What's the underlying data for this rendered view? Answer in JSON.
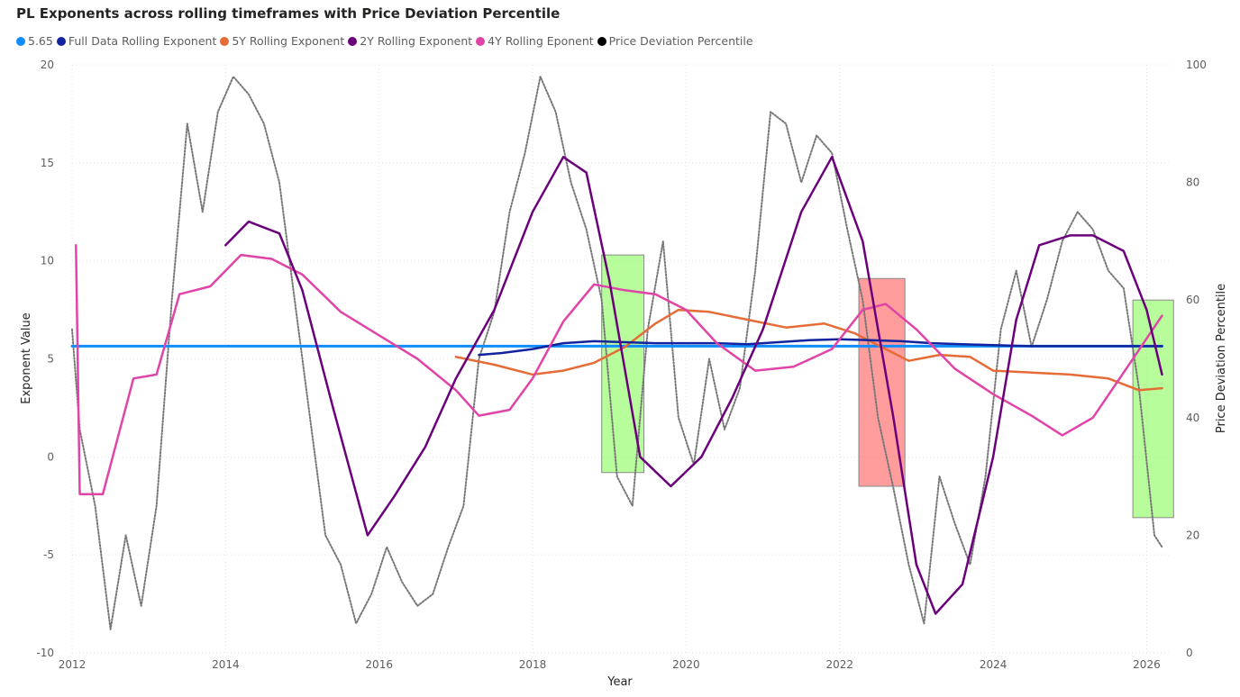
{
  "title": "PL Exponents across rolling timeframes with Price Deviation Percentile",
  "legend": [
    {
      "label": "5.65",
      "color": "#118DFF"
    },
    {
      "label": "Full Data Rolling Exponent",
      "color": "#12239E"
    },
    {
      "label": "5Y Rolling Exponent",
      "color": "#E66C37"
    },
    {
      "label": "2Y Rolling Exponent",
      "color": "#6B007B"
    },
    {
      "label": "4Y Rolling Eponent",
      "color": "#E044A7"
    },
    {
      "label": "Price Deviation Percentile",
      "color": "#000000"
    }
  ],
  "chart_data": {
    "type": "line",
    "xlabel": "Year",
    "ylabel": "Exponent Value",
    "y2label": "Price Deviation Percentile",
    "xlim": [
      2012,
      2026.3
    ],
    "ylim": [
      -10,
      20
    ],
    "y2lim": [
      0,
      100
    ],
    "xticks": [
      "2012",
      "2014",
      "2016",
      "2018",
      "2020",
      "2022",
      "2024",
      "2026"
    ],
    "yticks": [
      "-10",
      "-5",
      "0",
      "5",
      "10",
      "15",
      "20"
    ],
    "y2ticks": [
      "0",
      "20",
      "40",
      "60",
      "80",
      "100"
    ],
    "grid": true,
    "legend_position": "top-left",
    "series": [
      {
        "name": "5.65",
        "color": "#118DFF",
        "x": [
          2012.0,
          2026.2
        ],
        "y": [
          5.65,
          5.65
        ]
      },
      {
        "name": "Full Data Rolling Exponent",
        "color": "#12239E",
        "x": [
          2017.3,
          2017.6,
          2018.0,
          2018.4,
          2018.8,
          2019.2,
          2019.6,
          2020.0,
          2020.4,
          2020.8,
          2021.2,
          2021.6,
          2022.0,
          2022.4,
          2022.8,
          2023.2,
          2023.6,
          2024.0,
          2024.5,
          2025.0,
          2025.5,
          2026.2
        ],
        "y": [
          5.2,
          5.3,
          5.5,
          5.8,
          5.9,
          5.85,
          5.8,
          5.8,
          5.8,
          5.75,
          5.85,
          5.95,
          6.0,
          5.95,
          5.9,
          5.8,
          5.75,
          5.7,
          5.65,
          5.65,
          5.65,
          5.65
        ]
      },
      {
        "name": "5Y Rolling Exponent",
        "color": "#E66C37",
        "x": [
          2017.0,
          2017.5,
          2018.0,
          2018.4,
          2018.8,
          2019.2,
          2019.6,
          2019.9,
          2020.3,
          2020.8,
          2021.3,
          2021.8,
          2022.2,
          2022.6,
          2022.9,
          2023.3,
          2023.7,
          2024.0,
          2024.5,
          2025.0,
          2025.5,
          2025.9,
          2026.2
        ],
        "y": [
          5.1,
          4.7,
          4.2,
          4.4,
          4.8,
          5.6,
          6.8,
          7.5,
          7.4,
          7.0,
          6.6,
          6.8,
          6.3,
          5.5,
          4.9,
          5.2,
          5.1,
          4.4,
          4.3,
          4.2,
          4.0,
          3.4,
          3.5
        ]
      },
      {
        "name": "2Y Rolling Exponent",
        "color": "#6B007B",
        "x": [
          2014.0,
          2014.3,
          2014.7,
          2015.0,
          2015.4,
          2015.85,
          2016.2,
          2016.6,
          2017.0,
          2017.5,
          2018.0,
          2018.4,
          2018.7,
          2019.0,
          2019.4,
          2019.8,
          2020.2,
          2020.6,
          2021.0,
          2021.5,
          2021.9,
          2022.3,
          2022.7,
          2023.0,
          2023.25,
          2023.6,
          2024.0,
          2024.3,
          2024.6,
          2025.0,
          2025.3,
          2025.7,
          2026.0,
          2026.2
        ],
        "y": [
          10.8,
          12.0,
          11.4,
          8.5,
          2.5,
          -4.0,
          -2.0,
          0.5,
          4.0,
          7.5,
          12.5,
          15.3,
          14.5,
          9.0,
          0.0,
          -1.5,
          0.0,
          3.0,
          6.5,
          12.5,
          15.3,
          11.0,
          2.0,
          -5.5,
          -8.0,
          -6.5,
          0.0,
          7.0,
          10.8,
          11.3,
          11.3,
          10.5,
          7.5,
          4.2
        ]
      },
      {
        "name": "4Y Rolling Eponent",
        "color": "#E044A7",
        "x": [
          2012.05,
          2012.1,
          2012.4,
          2012.8,
          2013.1,
          2013.4,
          2013.8,
          2014.2,
          2014.6,
          2015.0,
          2015.5,
          2016.0,
          2016.5,
          2017.0,
          2017.3,
          2017.7,
          2018.0,
          2018.4,
          2018.8,
          2019.2,
          2019.6,
          2020.0,
          2020.4,
          2020.9,
          2021.4,
          2021.9,
          2022.3,
          2022.6,
          2023.0,
          2023.5,
          2024.0,
          2024.5,
          2024.9,
          2025.3,
          2025.7,
          2026.2
        ],
        "y": [
          10.8,
          -1.9,
          -1.9,
          4.0,
          4.2,
          8.3,
          8.7,
          10.3,
          10.1,
          9.3,
          7.4,
          6.2,
          5.0,
          3.4,
          2.1,
          2.4,
          4.0,
          6.9,
          8.8,
          8.5,
          8.3,
          7.5,
          5.8,
          4.4,
          4.6,
          5.5,
          7.5,
          7.8,
          6.5,
          4.5,
          3.2,
          2.1,
          1.1,
          2.0,
          4.3,
          7.2
        ]
      },
      {
        "name": "Price Deviation Percentile",
        "color": "#777777",
        "axis": "right",
        "x": [
          2012.0,
          2012.1,
          2012.3,
          2012.5,
          2012.7,
          2012.9,
          2013.1,
          2013.3,
          2013.5,
          2013.7,
          2013.9,
          2014.1,
          2014.3,
          2014.5,
          2014.7,
          2014.9,
          2015.1,
          2015.3,
          2015.5,
          2015.7,
          2015.9,
          2016.1,
          2016.3,
          2016.5,
          2016.7,
          2016.9,
          2017.1,
          2017.3,
          2017.5,
          2017.7,
          2017.9,
          2018.1,
          2018.3,
          2018.5,
          2018.7,
          2018.9,
          2019.1,
          2019.3,
          2019.5,
          2019.7,
          2019.9,
          2020.1,
          2020.3,
          2020.5,
          2020.7,
          2020.9,
          2021.1,
          2021.3,
          2021.5,
          2021.7,
          2021.9,
          2022.1,
          2022.3,
          2022.5,
          2022.7,
          2022.9,
          2023.1,
          2023.3,
          2023.5,
          2023.7,
          2023.9,
          2024.1,
          2024.3,
          2024.5,
          2024.7,
          2024.9,
          2025.1,
          2025.3,
          2025.5,
          2025.7,
          2025.9,
          2026.1,
          2026.2
        ],
        "y": [
          55,
          38,
          25,
          4,
          20,
          8,
          25,
          60,
          90,
          75,
          92,
          98,
          95,
          90,
          80,
          60,
          40,
          20,
          15,
          5,
          10,
          18,
          12,
          8,
          10,
          18,
          25,
          50,
          58,
          75,
          85,
          98,
          92,
          80,
          72,
          60,
          30,
          25,
          55,
          70,
          40,
          32,
          50,
          38,
          45,
          65,
          92,
          90,
          80,
          88,
          85,
          72,
          60,
          40,
          28,
          15,
          5,
          30,
          22,
          15,
          30,
          55,
          65,
          52,
          60,
          70,
          75,
          72,
          65,
          62,
          45,
          20,
          18
        ]
      }
    ],
    "highlights": [
      {
        "x0": 2018.9,
        "x1": 2019.45,
        "y0": -0.8,
        "y1": 10.3,
        "color": "#7CFC4A"
      },
      {
        "x0": 2022.25,
        "x1": 2022.85,
        "y0": -1.5,
        "y1": 9.1,
        "color": "#FF4A4A"
      },
      {
        "x0": 2025.82,
        "x1": 2026.35,
        "y0": -3.1,
        "y1": 8.0,
        "color": "#7CFC4A"
      }
    ]
  }
}
